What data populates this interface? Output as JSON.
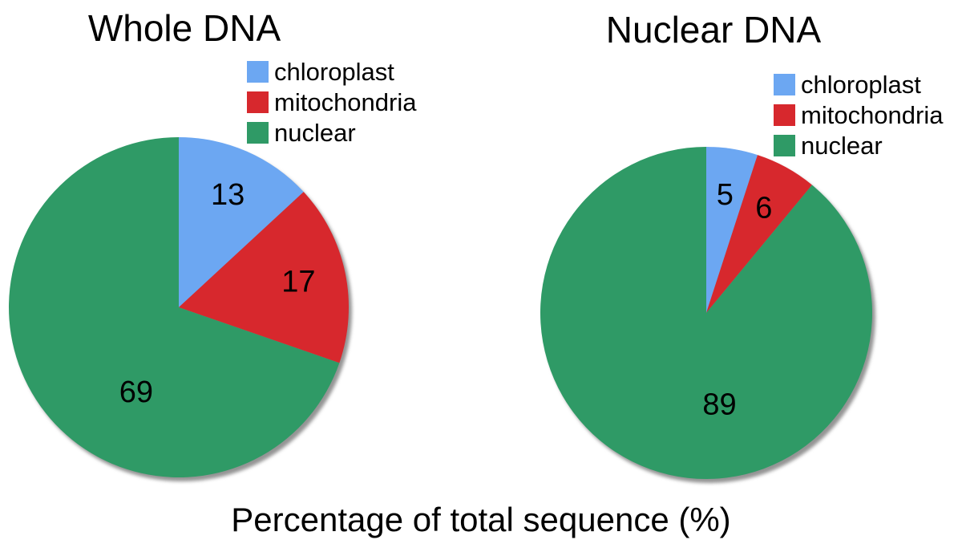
{
  "caption": "Percentage of total sequence (%)",
  "style": {
    "background": "#FFFFFF",
    "shadow_color": "#949494",
    "text_color": "#000000",
    "chloroplast_color": "#6CA7F2",
    "mitochondria_color": "#D7282D",
    "nuclear_color": "#2F9A66"
  },
  "chart_data": [
    {
      "type": "pie",
      "title": "Whole DNA",
      "categories": [
        "chloroplast",
        "mitochondria",
        "nuclear"
      ],
      "values": [
        13,
        17,
        69
      ],
      "colors": [
        "#6CA7F2",
        "#D7282D",
        "#2F9A66"
      ],
      "start_angle_deg": 0,
      "direction": "clockwise",
      "legend_position": "top-right",
      "data_labels_shown": true
    },
    {
      "type": "pie",
      "title": "Nuclear DNA",
      "categories": [
        "chloroplast",
        "mitochondria",
        "nuclear"
      ],
      "values": [
        5,
        6,
        89
      ],
      "colors": [
        "#6CA7F2",
        "#D7282D",
        "#2F9A66"
      ],
      "start_angle_deg": 0,
      "direction": "clockwise",
      "legend_position": "top-right",
      "data_labels_shown": true
    }
  ]
}
